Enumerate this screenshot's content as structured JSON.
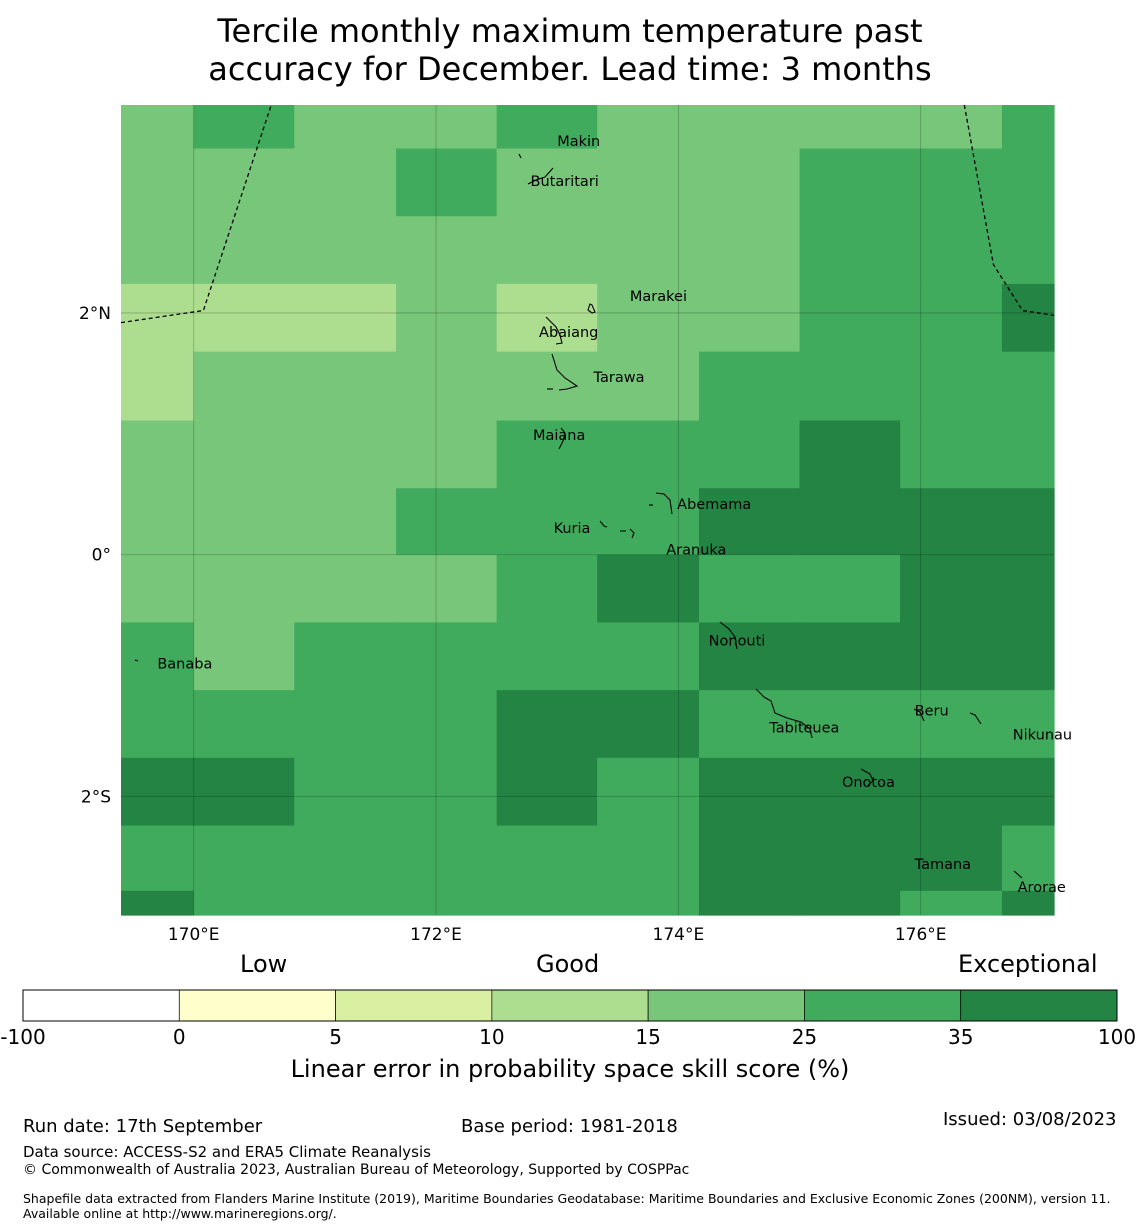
{
  "title": "Tercile monthly maximum temperature past\naccuracy for December. Lead time: 3 months",
  "axes": {
    "lon_ticks": [
      "170°E",
      "172°E",
      "174°E",
      "176°E"
    ],
    "lat_ticks": [
      "2°N",
      "0°",
      "2°S"
    ],
    "lon_range": [
      169.4,
      177.1
    ],
    "lat_range": [
      -2.98,
      3.72
    ]
  },
  "grid_cells": {
    "lon_edges": [
      169.4,
      170.0,
      170.83,
      171.67,
      172.5,
      173.33,
      174.17,
      175.0,
      175.83,
      176.67,
      177.1
    ],
    "lat_edges": [
      3.72,
      3.36,
      2.8,
      2.24,
      1.68,
      1.11,
      0.55,
      0.0,
      -0.56,
      -1.12,
      -1.68,
      -2.24,
      -2.78,
      -2.98
    ],
    "class_rows": [
      [
        4,
        5,
        4,
        4,
        5,
        4,
        4,
        4,
        4,
        5
      ],
      [
        4,
        4,
        4,
        5,
        4,
        4,
        4,
        5,
        5,
        5
      ],
      [
        4,
        4,
        4,
        4,
        4,
        4,
        4,
        5,
        5,
        5
      ],
      [
        3,
        3,
        3,
        4,
        3,
        4,
        4,
        5,
        5,
        6
      ],
      [
        3,
        4,
        4,
        4,
        4,
        4,
        5,
        5,
        5,
        5
      ],
      [
        4,
        4,
        4,
        4,
        5,
        5,
        5,
        6,
        5,
        5
      ],
      [
        4,
        4,
        4,
        5,
        5,
        5,
        6,
        6,
        6,
        6
      ],
      [
        4,
        4,
        4,
        4,
        5,
        6,
        5,
        5,
        6,
        6
      ],
      [
        5,
        4,
        5,
        5,
        5,
        5,
        6,
        6,
        6,
        6
      ],
      [
        5,
        5,
        5,
        5,
        6,
        6,
        5,
        5,
        5,
        5
      ],
      [
        6,
        6,
        5,
        5,
        6,
        5,
        6,
        6,
        6,
        6
      ],
      [
        5,
        5,
        5,
        5,
        5,
        5,
        6,
        6,
        6,
        5
      ],
      [
        6,
        5,
        5,
        5,
        5,
        5,
        6,
        6,
        5,
        6
      ]
    ]
  },
  "places": [
    {
      "name": "Makin",
      "lon": 173.0,
      "lat": 3.38
    },
    {
      "name": "Butaritari",
      "lon": 172.78,
      "lat": 3.05
    },
    {
      "name": "Marakei",
      "lon": 173.6,
      "lat": 2.1
    },
    {
      "name": "Abaiang",
      "lon": 172.85,
      "lat": 1.8
    },
    {
      "name": "Tarawa",
      "lon": 173.3,
      "lat": 1.43
    },
    {
      "name": "Maiana",
      "lon": 172.8,
      "lat": 0.95
    },
    {
      "name": "Abemama",
      "lon": 173.99,
      "lat": 0.38
    },
    {
      "name": "Kuria",
      "lon": 172.97,
      "lat": 0.18
    },
    {
      "name": "Aranuka",
      "lon": 173.9,
      "lat": -0.0
    },
    {
      "name": "Nonouti",
      "lon": 174.25,
      "lat": -0.75
    },
    {
      "name": "Banaba",
      "lon": 169.7,
      "lat": -0.94
    },
    {
      "name": "Beru",
      "lon": 175.95,
      "lat": -1.33
    },
    {
      "name": "Tabiteuea",
      "lon": 174.75,
      "lat": -1.47
    },
    {
      "name": "Nikunau",
      "lon": 176.76,
      "lat": -1.53
    },
    {
      "name": "Onotoa",
      "lon": 175.35,
      "lat": -1.92
    },
    {
      "name": "Tamana",
      "lon": 175.95,
      "lat": -2.6
    },
    {
      "name": "Arorae",
      "lon": 176.8,
      "lat": -2.79
    }
  ],
  "eez_lines": [
    [
      [
        169.4,
        1.92
      ],
      [
        170.08,
        2.02
      ],
      [
        170.64,
        3.72
      ]
    ],
    [
      [
        176.36,
        3.72
      ],
      [
        176.6,
        2.4
      ],
      [
        176.84,
        2.02
      ],
      [
        177.1,
        1.98
      ]
    ]
  ],
  "legend": {
    "category_labels": [
      "Low",
      "Good",
      "Exceptional"
    ],
    "bounds": [
      "-100",
      "0",
      "5",
      "10",
      "15",
      "25",
      "35",
      "100"
    ],
    "colors": [
      "#ffffff",
      "#ffffcc",
      "#d9f0a3",
      "#addd8e",
      "#78c679",
      "#41ab5d",
      "#238443"
    ],
    "xlabel": "Linear error in probability space skill score (%)"
  },
  "footer": {
    "run_date": "Run date: 17th September",
    "base_period": "Base period: 1981-2018",
    "issued": "Issued: 03/08/2023",
    "data_source": "Data source: ACCESS-S2 and ERA5 Climate Reanalysis",
    "copyright": "© Commonwealth of Australia 2023, Australian Bureau of Meteorology, Supported by COSPPac",
    "shapefile_note": "Shapefile data extracted from Flanders Marine Institute (2019), Maritime Boundaries Geodatabase: Maritime Boundaries and Exclusive Economic Zones (200NM), version 11. Available online at http://www.marineregions.org/."
  }
}
